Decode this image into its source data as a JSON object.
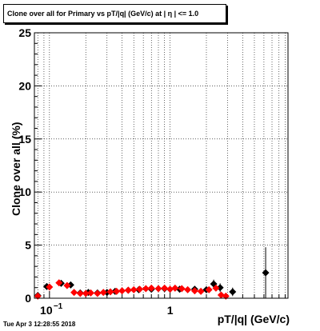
{
  "header": {
    "title": "Clone  over all for Primary vs pT/|q| (GeV/c) at |  η | <= 1.0"
  },
  "footer": {
    "datestamp": "Tue Apr  3 12:28:55 2018"
  },
  "chart_data": {
    "type": "scatter",
    "title": "Clone  over all for Primary vs pT/|q| (GeV/c) at |  η | <= 1.0",
    "xlabel": "pT/|q| (GeV/c)",
    "ylabel": "Clone  over all (%)",
    "x_scale": "log",
    "xlim": [
      0.075,
      9.5
    ],
    "ylim": [
      0,
      25
    ],
    "y_ticks": [
      0,
      5,
      10,
      15,
      20,
      25
    ],
    "x_tick_labels": [
      {
        "value": 0.1,
        "label": "10",
        "exponent": "−1"
      },
      {
        "value": 1,
        "label": "1",
        "exponent": ""
      }
    ],
    "grid": true,
    "series": [
      {
        "color": "#000000",
        "marker": "diamond",
        "points": [
          {
            "x": 0.08,
            "y": 0.25,
            "err": 0.2
          },
          {
            "x": 0.095,
            "y": 1.1,
            "err": 0.25
          },
          {
            "x": 0.125,
            "y": 1.4,
            "err": 0.2
          },
          {
            "x": 0.15,
            "y": 1.25,
            "err": 0.2
          },
          {
            "x": 0.18,
            "y": 0.5,
            "err": 0.15
          },
          {
            "x": 0.21,
            "y": 0.55,
            "err": 0.15
          },
          {
            "x": 0.25,
            "y": 0.5,
            "err": 0.12
          },
          {
            "x": 0.3,
            "y": 0.55,
            "err": 0.1
          },
          {
            "x": 0.35,
            "y": 0.65,
            "err": 0.1
          },
          {
            "x": 0.45,
            "y": 0.75,
            "err": 0.1
          },
          {
            "x": 0.55,
            "y": 0.8,
            "err": 0.1
          },
          {
            "x": 0.7,
            "y": 0.85,
            "err": 0.12
          },
          {
            "x": 0.9,
            "y": 0.9,
            "err": 0.15
          },
          {
            "x": 1.2,
            "y": 0.85,
            "err": 0.15
          },
          {
            "x": 1.6,
            "y": 0.85,
            "err": 0.2
          },
          {
            "x": 2.0,
            "y": 0.8,
            "err": 0.25
          },
          {
            "x": 2.3,
            "y": 1.35,
            "err": 0.4
          },
          {
            "x": 2.6,
            "y": 1.0,
            "err": 0.4
          },
          {
            "x": 3.3,
            "y": 0.6,
            "err": 0.4
          },
          {
            "x": 6.2,
            "y": 2.4,
            "err": 2.4
          }
        ]
      },
      {
        "color": "#ff0000",
        "marker": "diamond",
        "points": [
          {
            "x": 0.08,
            "y": 0.2
          },
          {
            "x": 0.1,
            "y": 1.05
          },
          {
            "x": 0.12,
            "y": 1.45
          },
          {
            "x": 0.14,
            "y": 1.2
          },
          {
            "x": 0.16,
            "y": 0.55
          },
          {
            "x": 0.18,
            "y": 0.45
          },
          {
            "x": 0.2,
            "y": 0.45
          },
          {
            "x": 0.22,
            "y": 0.5
          },
          {
            "x": 0.25,
            "y": 0.45
          },
          {
            "x": 0.28,
            "y": 0.55
          },
          {
            "x": 0.32,
            "y": 0.6
          },
          {
            "x": 0.36,
            "y": 0.65
          },
          {
            "x": 0.4,
            "y": 0.7
          },
          {
            "x": 0.45,
            "y": 0.75
          },
          {
            "x": 0.5,
            "y": 0.8
          },
          {
            "x": 0.56,
            "y": 0.85
          },
          {
            "x": 0.63,
            "y": 0.9
          },
          {
            "x": 0.7,
            "y": 0.95
          },
          {
            "x": 0.8,
            "y": 0.9
          },
          {
            "x": 0.9,
            "y": 0.95
          },
          {
            "x": 1.0,
            "y": 0.85
          },
          {
            "x": 1.1,
            "y": 0.95
          },
          {
            "x": 1.25,
            "y": 0.9
          },
          {
            "x": 1.4,
            "y": 0.8
          },
          {
            "x": 1.6,
            "y": 0.7
          },
          {
            "x": 1.8,
            "y": 0.65
          },
          {
            "x": 2.1,
            "y": 0.8
          },
          {
            "x": 2.4,
            "y": 0.95
          },
          {
            "x": 2.65,
            "y": 0.3
          },
          {
            "x": 2.9,
            "y": 0.2
          }
        ]
      }
    ]
  }
}
